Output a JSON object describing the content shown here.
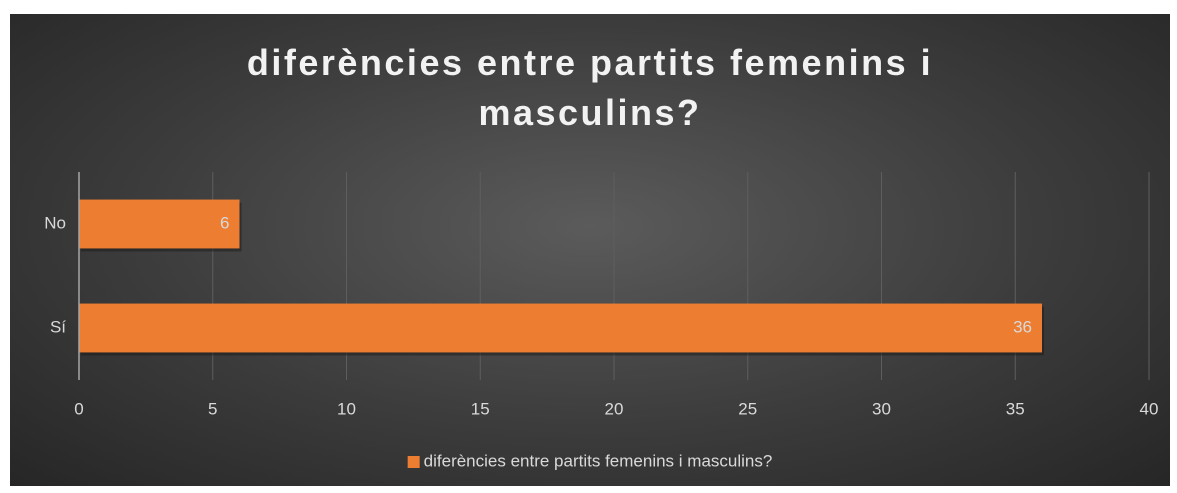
{
  "chart_data": {
    "type": "bar",
    "orientation": "horizontal",
    "title": "diferències entre partits femenins i masculins?",
    "categories": [
      "No",
      "Sí"
    ],
    "series": [
      {
        "name": "diferències entre partits femenins i masculins?",
        "color": "#ed7d31",
        "values": [
          6,
          36
        ]
      }
    ],
    "xlim": [
      0,
      40
    ],
    "xticks": [
      0,
      5,
      10,
      15,
      20,
      25,
      30,
      35,
      40
    ],
    "grid": true,
    "legend": "bottom"
  }
}
